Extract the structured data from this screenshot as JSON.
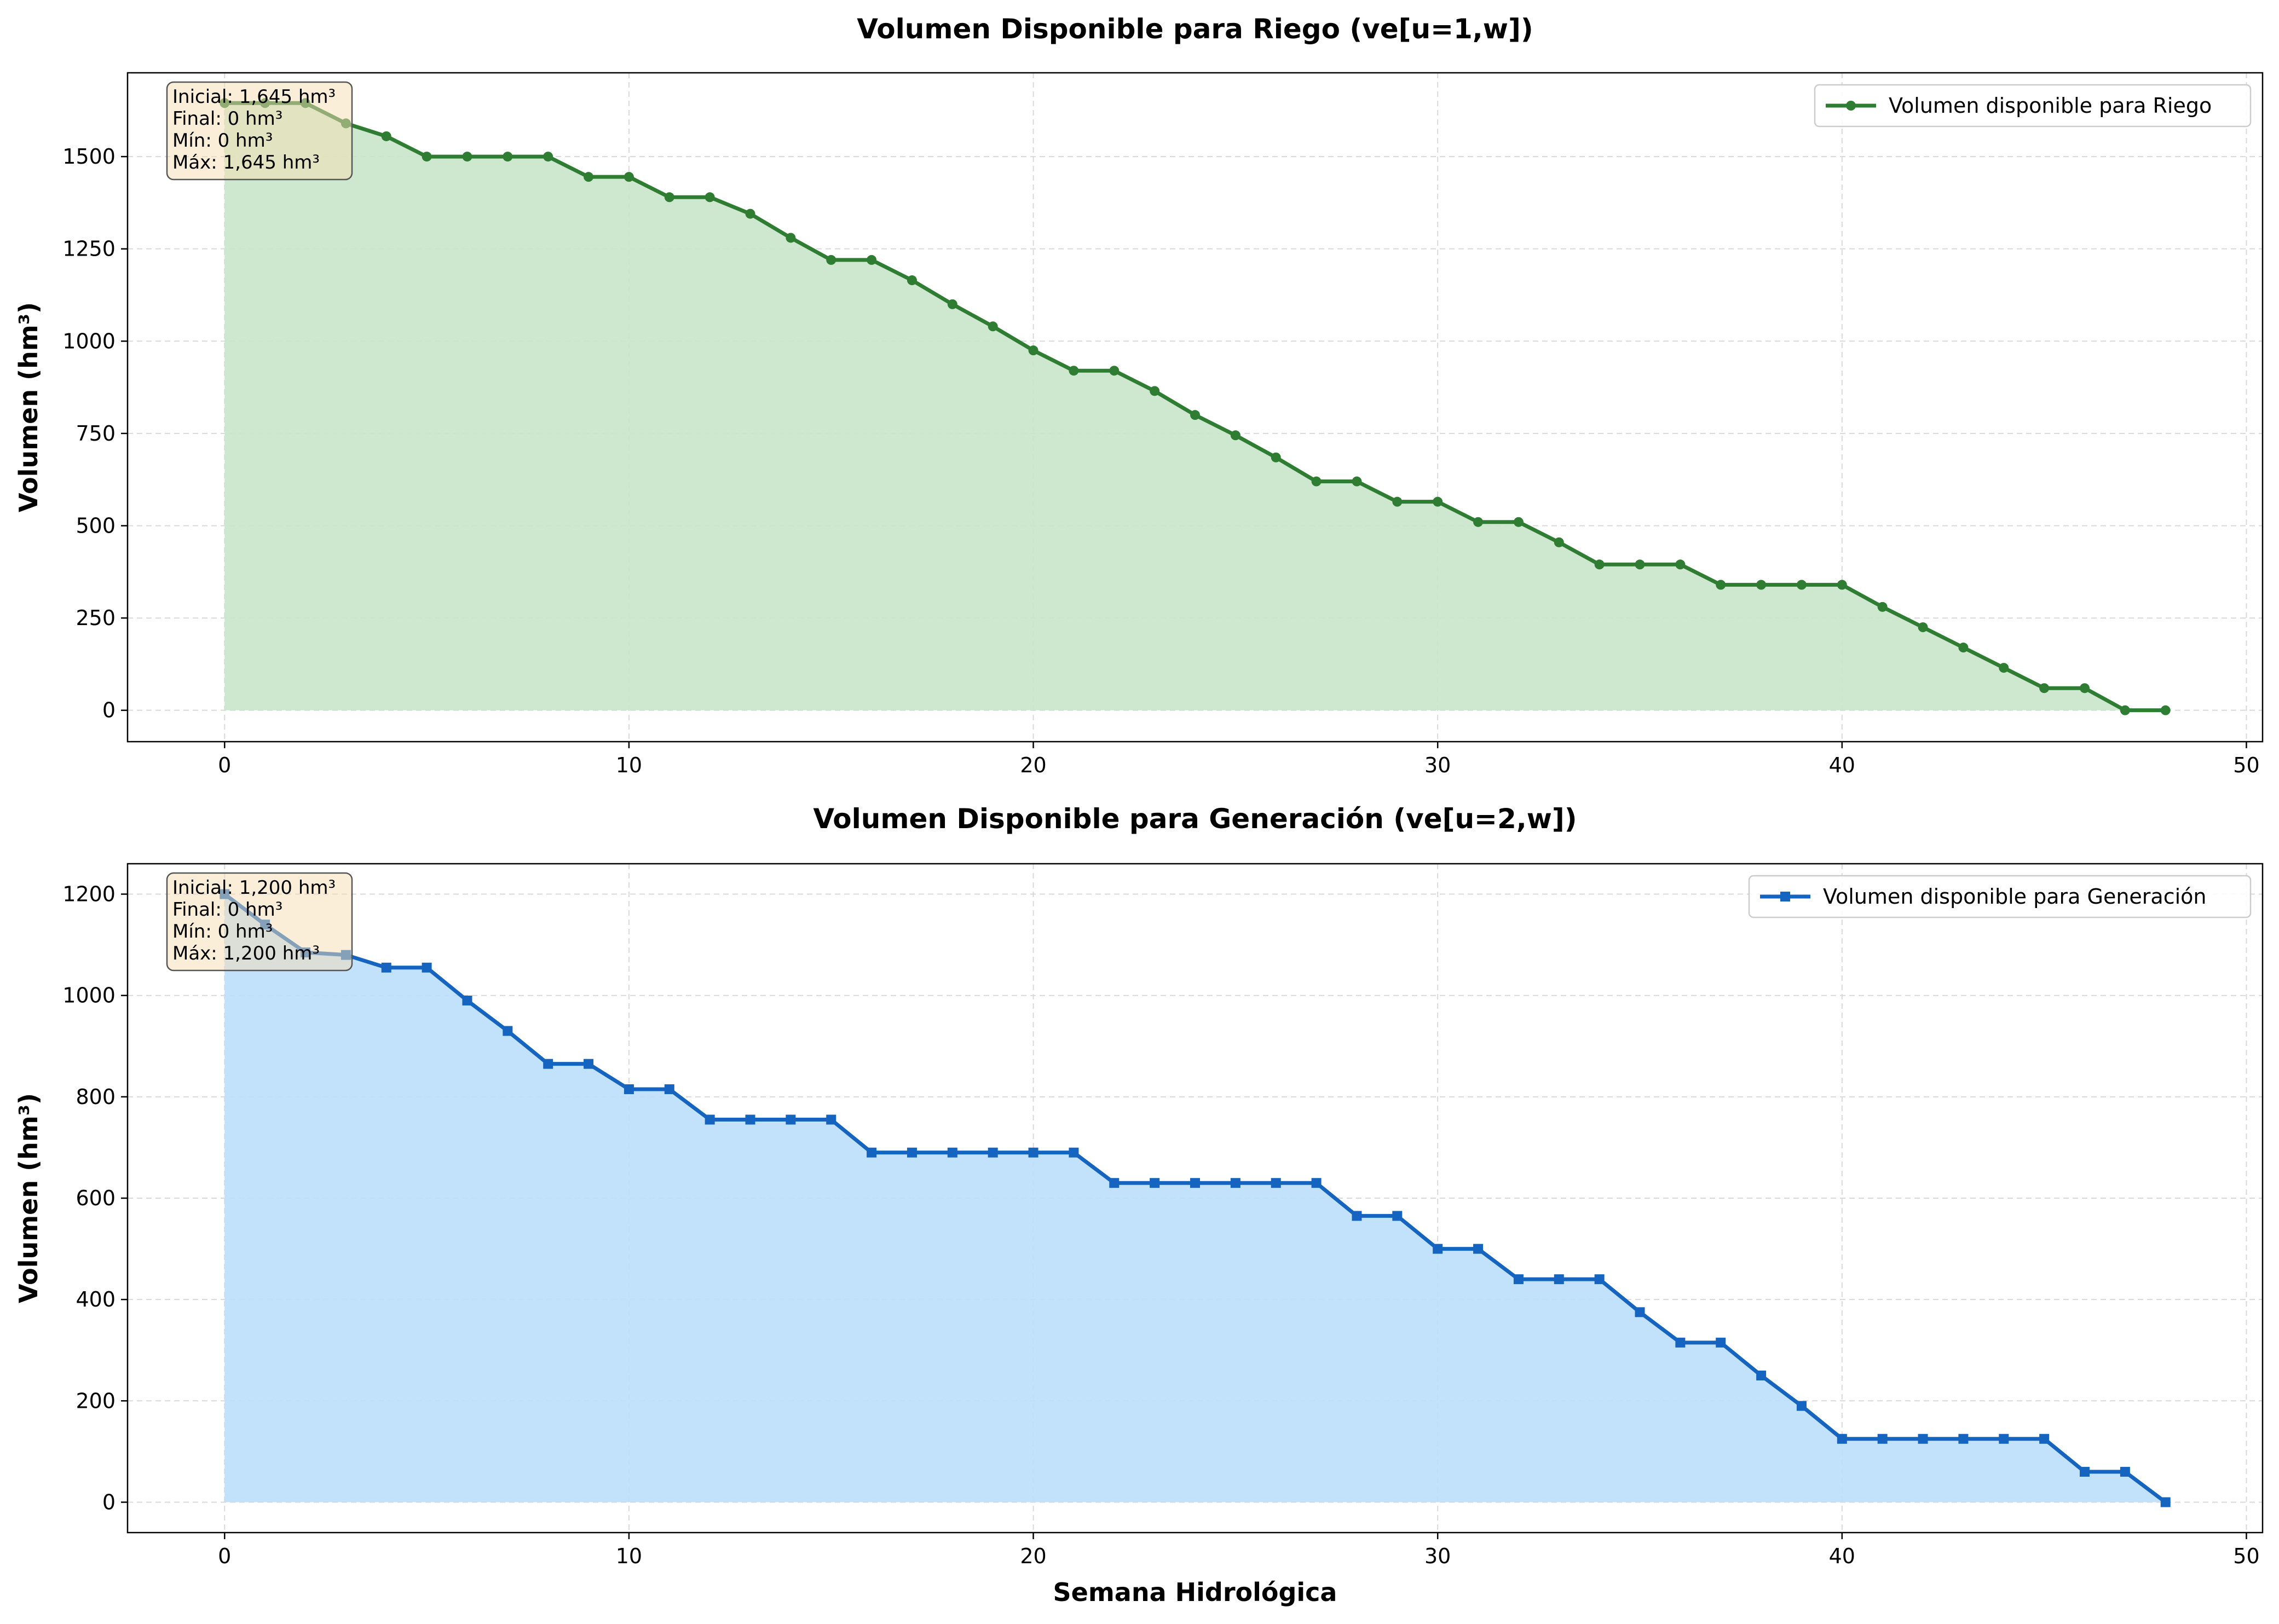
{
  "chart_data": [
    {
      "type": "area",
      "title": "Volumen Disponible para Riego (ve[u=1,w])",
      "xlabel": "",
      "ylabel": "Volumen (hm³)",
      "xlim": [
        -2.4,
        50.4
      ],
      "ylim": [
        -85,
        1727
      ],
      "xticks": [
        0,
        10,
        20,
        30,
        40,
        50
      ],
      "yticks": [
        0,
        250,
        500,
        750,
        1000,
        1250,
        1500
      ],
      "grid": true,
      "legend_position": "top-right",
      "marker": "circle",
      "color": "#2e7d32",
      "fill_color": "#c8e6c9",
      "series": [
        {
          "name": "Volumen disponible para Riego",
          "x": [
            0,
            1,
            2,
            3,
            4,
            5,
            6,
            7,
            8,
            9,
            10,
            11,
            12,
            13,
            14,
            15,
            16,
            17,
            18,
            19,
            20,
            21,
            22,
            23,
            24,
            25,
            26,
            27,
            28,
            29,
            30,
            31,
            32,
            33,
            34,
            35,
            36,
            37,
            38,
            39,
            40,
            41,
            42,
            43,
            44,
            45,
            46,
            47,
            48
          ],
          "values": [
            1645,
            1645,
            1645,
            1590,
            1555,
            1500,
            1500,
            1500,
            1500,
            1445,
            1445,
            1390,
            1390,
            1345,
            1280,
            1220,
            1220,
            1165,
            1100,
            1040,
            975,
            920,
            920,
            865,
            800,
            745,
            685,
            620,
            620,
            565,
            565,
            510,
            510,
            455,
            395,
            395,
            395,
            340,
            340,
            340,
            340,
            280,
            225,
            170,
            115,
            60,
            60,
            0,
            0
          ]
        }
      ],
      "stats_box": [
        "Inicial: 1,645 hm³",
        "Final: 0 hm³",
        "Mín: 0 hm³",
        "Máx: 1,645 hm³"
      ]
    },
    {
      "type": "area",
      "title": "Volumen Disponible para Generación (ve[u=2,w])",
      "xlabel": "Semana Hidrológica",
      "ylabel": "Volumen (hm³)",
      "xlim": [
        -2.4,
        50.4
      ],
      "ylim": [
        -60,
        1260
      ],
      "xticks": [
        0,
        10,
        20,
        30,
        40,
        50
      ],
      "yticks": [
        0,
        200,
        400,
        600,
        800,
        1000,
        1200
      ],
      "grid": true,
      "legend_position": "top-right",
      "marker": "square",
      "color": "#1565c0",
      "fill_color": "#bbdefb",
      "series": [
        {
          "name": "Volumen disponible para Generación",
          "x": [
            0,
            1,
            2,
            3,
            4,
            5,
            6,
            7,
            8,
            9,
            10,
            11,
            12,
            13,
            14,
            15,
            16,
            17,
            18,
            19,
            20,
            21,
            22,
            23,
            24,
            25,
            26,
            27,
            28,
            29,
            30,
            31,
            32,
            33,
            34,
            35,
            36,
            37,
            38,
            39,
            40,
            41,
            42,
            43,
            44,
            45,
            46,
            47,
            48
          ],
          "values": [
            1200,
            1140,
            1085,
            1080,
            1055,
            1055,
            990,
            930,
            865,
            865,
            815,
            815,
            755,
            755,
            755,
            755,
            690,
            690,
            690,
            690,
            690,
            690,
            630,
            630,
            630,
            630,
            630,
            630,
            565,
            565,
            500,
            500,
            440,
            440,
            440,
            375,
            315,
            315,
            250,
            190,
            125,
            125,
            125,
            125,
            125,
            125,
            60,
            60,
            0
          ]
        }
      ],
      "stats_box": [
        "Inicial: 1,200 hm³",
        "Final: 0 hm³",
        "Mín: 0 hm³",
        "Máx: 1,200 hm³"
      ]
    }
  ]
}
